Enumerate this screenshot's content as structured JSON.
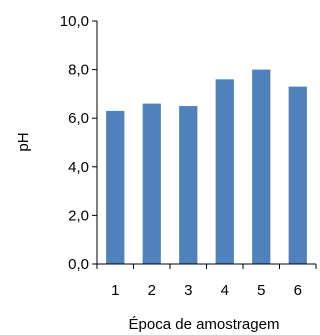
{
  "chart_data": {
    "type": "bar",
    "categories": [
      "1",
      "2",
      "3",
      "4",
      "5",
      "6"
    ],
    "values": [
      6.3,
      6.6,
      6.5,
      7.6,
      8.0,
      7.3
    ],
    "xlabel": "Época de amostragem",
    "ylabel": "pH",
    "ylim": [
      0,
      10
    ],
    "y_ticks": [
      "0,0",
      "2,0",
      "4,0",
      "6,0",
      "8,0",
      "10,0"
    ],
    "grid": false,
    "legend": "none",
    "colors": {
      "bar": "#4f81bd",
      "axis": "#000000"
    }
  }
}
